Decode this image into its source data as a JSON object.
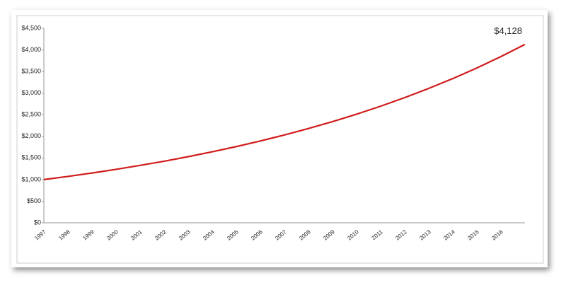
{
  "chart_data": {
    "type": "line",
    "categories": [
      "1997",
      "1998",
      "1999",
      "2000",
      "2001",
      "2002",
      "2003",
      "2004",
      "2005",
      "2006",
      "2007",
      "2008",
      "2009",
      "2010",
      "2011",
      "2012",
      "2013",
      "2014",
      "2015",
      "2016",
      null
    ],
    "values": [
      1000,
      1073,
      1152,
      1237,
      1328,
      1425,
      1530,
      1643,
      1763,
      1893,
      2032,
      2181,
      2341,
      2513,
      2698,
      2896,
      3109,
      3337,
      3582,
      3845,
      4128
    ],
    "value_labels": [
      null,
      null,
      null,
      null,
      null,
      null,
      null,
      null,
      null,
      null,
      null,
      null,
      null,
      null,
      null,
      null,
      null,
      null,
      null,
      null,
      "$4,128"
    ],
    "color": "#d01c1c",
    "ylim": [
      0,
      4500
    ],
    "yticks": [
      {
        "value": 0,
        "label": "$0"
      },
      {
        "value": 500,
        "label": "$500"
      },
      {
        "value": 1000,
        "label": "$1,000"
      },
      {
        "value": 1500,
        "label": "$1,500"
      },
      {
        "value": 2000,
        "label": "$2,000"
      },
      {
        "value": 2500,
        "label": "$2,500"
      },
      {
        "value": 3000,
        "label": "$3,000"
      },
      {
        "value": 3500,
        "label": "$3,500"
      },
      {
        "value": 4000,
        "label": "$4,000"
      },
      {
        "value": 4500,
        "label": "$4,500"
      }
    ],
    "grid": false
  }
}
